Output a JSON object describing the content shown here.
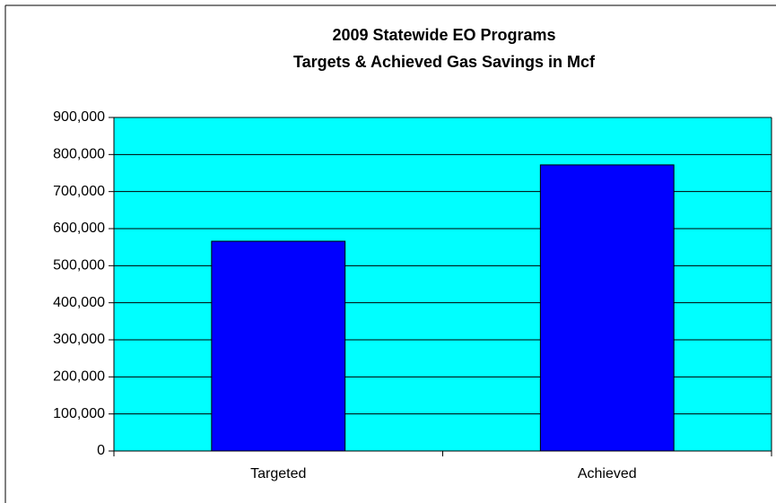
{
  "chart_data": {
    "type": "bar",
    "title": [
      "2009 Statewide EO Programs",
      "Targets & Achieved Gas Savings in Mcf"
    ],
    "categories": [
      "Targeted",
      "Achieved"
    ],
    "values": [
      566000,
      772000
    ],
    "color": "#0000ff",
    "plot_background": "#00ffff",
    "ylim": [
      0,
      900000
    ],
    "yticks": [
      0,
      {
        "value": 100000,
        "label": "100,000"
      },
      {
        "value": 200000,
        "label": "200,000"
      },
      {
        "value": 300000,
        "label": "300,000"
      },
      {
        "value": 400000,
        "label": "400,000"
      },
      {
        "value": 500000,
        "label": "500,000"
      },
      {
        "value": 600000,
        "label": "600,000"
      },
      {
        "value": 700000,
        "label": "700,000"
      },
      {
        "value": 800000,
        "label": "800,000"
      },
      {
        "value": 900000,
        "label": "900,000"
      }
    ],
    "grid": true
  }
}
